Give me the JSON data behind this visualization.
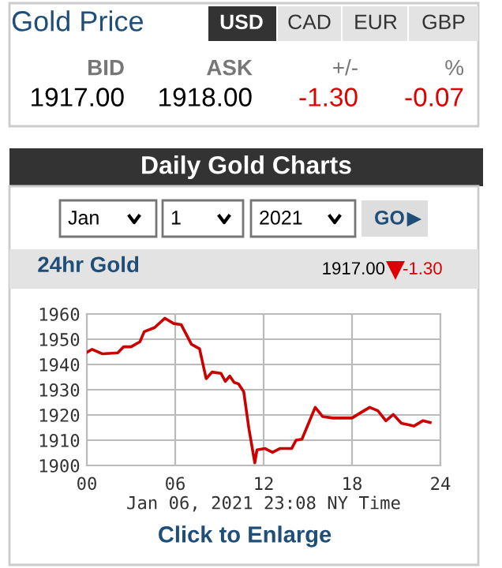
{
  "chart_data": {
    "type": "line",
    "title": "24hr Gold",
    "xlabel": "Jan 06, 2021 23:08 NY Time",
    "x": [
      0,
      0.36,
      1.07,
      2.1,
      2.5,
      3.0,
      3.6,
      3.9,
      4.6,
      5.3,
      5.9,
      6.4,
      7.1,
      7.65,
      8.1,
      8.5,
      9.1,
      9.4,
      9.7,
      10.0,
      10.3,
      10.65,
      11.0,
      11.4,
      11.55,
      12.1,
      12.6,
      13.1,
      13.9,
      14.2,
      14.6,
      15.5,
      16.0,
      16.7,
      18.0,
      18.7,
      19.2,
      19.75,
      20.3,
      20.8,
      21.35,
      22.2,
      22.8,
      23.3
    ],
    "series": [
      {
        "color": "#cc0000",
        "values": [
          1944.8,
          1946,
          1944.2,
          1944.6,
          1947,
          1947,
          1949,
          1953,
          1954.6,
          1958.3,
          1956.2,
          1955.8,
          1948,
          1946.2,
          1934.4,
          1937,
          1936.5,
          1933.3,
          1935.4,
          1932.9,
          1932.3,
          1929.2,
          1914.6,
          1901,
          1906.2,
          1906.7,
          1905.2,
          1906.7,
          1906.7,
          1910,
          1910.4,
          1923,
          1919.4,
          1918.8,
          1918.8,
          1921.3,
          1923,
          1921.7,
          1917.7,
          1920.2,
          1916.7,
          1915.6,
          1917.7,
          1917
        ]
      }
    ],
    "xlim": [
      0,
      24
    ],
    "xticks": [
      {
        "value": 0,
        "label": "00"
      },
      {
        "value": 6,
        "label": "06"
      },
      12,
      18,
      24
    ],
    "ylim": [
      1900,
      1960
    ],
    "yticks": [
      1900,
      1910,
      1920,
      1930,
      1940,
      1950,
      1960
    ],
    "grid": true,
    "annotations": [
      "Gold Price",
      "USD",
      "CAD",
      "EUR",
      "GBP",
      "BID",
      "ASK",
      "+/-",
      "%",
      "1917.00",
      "1918.00",
      "-1.30",
      "-0.07",
      "Daily Gold Charts",
      "Jan",
      "1",
      "2021",
      "GO",
      "1917.00",
      "-1.30",
      "Click to Enlarge"
    ]
  }
}
